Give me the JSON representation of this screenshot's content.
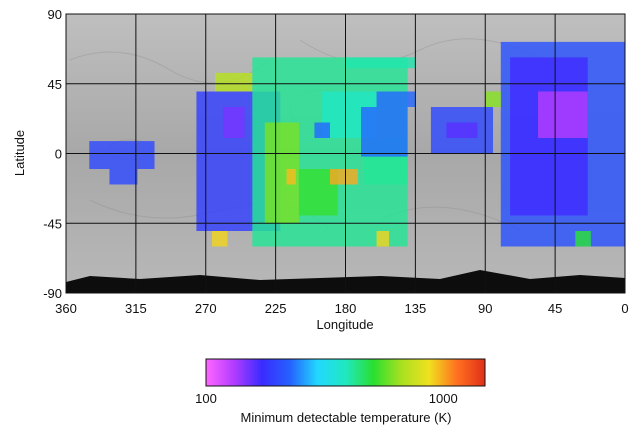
{
  "chart_data": {
    "type": "heatmap",
    "title": "",
    "xlabel": "Longitude",
    "ylabel": "Latitude",
    "xlim": [
      360,
      0
    ],
    "ylim": [
      -90,
      90
    ],
    "x_ticks": [
      "360",
      "315",
      "270",
      "225",
      "180",
      "135",
      "90",
      "45",
      "0"
    ],
    "x_tick_values": [
      360,
      315,
      270,
      225,
      180,
      135,
      90,
      45,
      0
    ],
    "y_ticks": [
      "90",
      "45",
      "0",
      "-45",
      "-90"
    ],
    "y_tick_values": [
      90,
      45,
      0,
      -45,
      -90
    ],
    "grid": true,
    "background": "grayscale surface map",
    "colorbar": {
      "label": "Minimum detectable temperature (K)",
      "scale": "log",
      "range": [
        100,
        1500
      ],
      "tick_labels": [
        "100",
        "1000"
      ],
      "tick_values": [
        100,
        1000
      ],
      "colors": [
        "#ff66ff",
        "#b23cff",
        "#3b2bff",
        "#2560ff",
        "#22d8ff",
        "#20e8c0",
        "#2adf30",
        "#a8e020",
        "#f0e020",
        "#ff7020",
        "#e03018"
      ]
    },
    "cells": [
      {
        "lon": [
          345,
          303
        ],
        "lat": [
          8,
          -10
        ],
        "value": 200
      },
      {
        "lon": [
          332,
          314
        ],
        "lat": [
          -10,
          -20
        ],
        "value": 200
      },
      {
        "lon": [
          276,
          222
        ],
        "lat": [
          40,
          -50
        ],
        "value": 190
      },
      {
        "lon": [
          259,
          245
        ],
        "lat": [
          30,
          10
        ],
        "value": 150
      },
      {
        "lon": [
          264,
          240
        ],
        "lat": [
          52,
          40
        ],
        "value": 700
      },
      {
        "lon": [
          266,
          256
        ],
        "lat": [
          -50,
          -60
        ],
        "value": 900
      },
      {
        "lon": [
          240,
          140
        ],
        "lat": [
          62,
          -60
        ],
        "value": 420
      },
      {
        "lon": [
          195,
          160
        ],
        "lat": [
          40,
          10
        ],
        "value": 380
      },
      {
        "lon": [
          232,
          210
        ],
        "lat": [
          20,
          -45
        ],
        "value": 600
      },
      {
        "lon": [
          210,
          185
        ],
        "lat": [
          -10,
          -40
        ],
        "value": 520
      },
      {
        "lon": [
          218,
          212
        ],
        "lat": [
          -10,
          -20
        ],
        "value": 950
      },
      {
        "lon": [
          190,
          172
        ],
        "lat": [
          -10,
          -20
        ],
        "value": 1000
      },
      {
        "lon": [
          168,
          140
        ],
        "lat": [
          10,
          -20
        ],
        "value": 420
      },
      {
        "lon": [
          160,
          152
        ],
        "lat": [
          -50,
          -60
        ],
        "value": 900
      },
      {
        "lon": [
          180,
          135
        ],
        "lat": [
          62,
          55
        ],
        "value": 400
      },
      {
        "lon": [
          200,
          190
        ],
        "lat": [
          20,
          10
        ],
        "value": 230
      },
      {
        "lon": [
          170,
          140
        ],
        "lat": [
          30,
          -2
        ],
        "value": 230
      },
      {
        "lon": [
          160,
          135
        ],
        "lat": [
          40,
          30
        ],
        "value": 230
      },
      {
        "lon": [
          125,
          85
        ],
        "lat": [
          30,
          0
        ],
        "value": 200
      },
      {
        "lon": [
          115,
          95
        ],
        "lat": [
          20,
          10
        ],
        "value": 160
      },
      {
        "lon": [
          80,
          0
        ],
        "lat": [
          72,
          -60
        ],
        "value": 210
      },
      {
        "lon": [
          74,
          24
        ],
        "lat": [
          62,
          -40
        ],
        "value": 170
      },
      {
        "lon": [
          56,
          24
        ],
        "lat": [
          40,
          10
        ],
        "value": 130
      },
      {
        "lon": [
          90,
          80
        ],
        "lat": [
          40,
          30
        ],
        "value": 620
      },
      {
        "lon": [
          32,
          22
        ],
        "lat": [
          -50,
          -60
        ],
        "value": 500
      }
    ]
  }
}
